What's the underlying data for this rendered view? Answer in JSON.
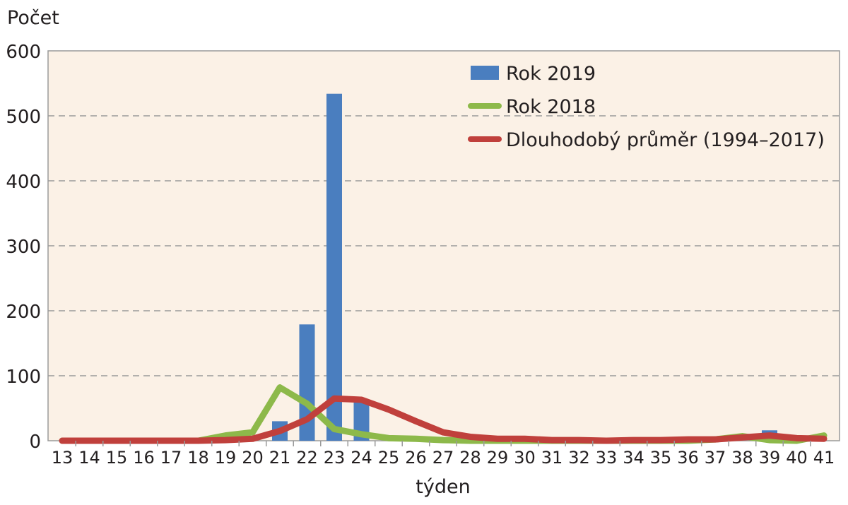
{
  "chart_data": {
    "type": "bar+line",
    "title": "",
    "xlabel": "týden",
    "ylabel": "Počet",
    "ylim": [
      0,
      600
    ],
    "yticks": [
      0,
      100,
      200,
      300,
      400,
      500,
      600
    ],
    "categories": [
      "13",
      "14",
      "15",
      "16",
      "17",
      "18",
      "19",
      "20",
      "21",
      "22",
      "23",
      "24",
      "25",
      "26",
      "27",
      "28",
      "29",
      "30",
      "31",
      "32",
      "33",
      "34",
      "35",
      "36",
      "37",
      "38",
      "39",
      "40",
      "41"
    ],
    "grid": true,
    "legend_position": "top-right",
    "series": [
      {
        "name": "Rok 2019",
        "type": "bar",
        "color": "#4a7ebf",
        "values": [
          0,
          0,
          0,
          0,
          0,
          0,
          0,
          0,
          30,
          179,
          534,
          62,
          0,
          0,
          0,
          0,
          0,
          0,
          0,
          0,
          0,
          0,
          0,
          0,
          0,
          0,
          16,
          0,
          0
        ]
      },
      {
        "name": "Rok 2018",
        "type": "line",
        "color": "#8db94a",
        "values": [
          0,
          0,
          0,
          0,
          0,
          0,
          8,
          13,
          82,
          57,
          18,
          10,
          4,
          3,
          1,
          0,
          0,
          0,
          0,
          0,
          0,
          0,
          0,
          0,
          2,
          7,
          1,
          0,
          8
        ]
      },
      {
        "name": "Dlouhodobý průměr (1994–2017)",
        "type": "line",
        "color": "#c0403c",
        "values": [
          0,
          0,
          0,
          0,
          0,
          0,
          1,
          3,
          15,
          33,
          65,
          63,
          48,
          30,
          13,
          6,
          3,
          3,
          1,
          1,
          0,
          1,
          1,
          2,
          2,
          5,
          8,
          4,
          3
        ]
      }
    ]
  }
}
